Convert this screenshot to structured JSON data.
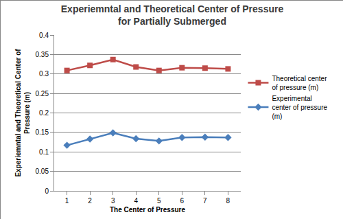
{
  "chart_data": {
    "type": "line",
    "title": "Experiemntal and Theoretical Center of Pressure for Partially Submerged",
    "x_label": "The Center of Pressure",
    "y_label": "Experiemntal and Theoretical Center of Pressure (m)",
    "categories": [
      "1",
      "2",
      "3",
      "4",
      "5",
      "6",
      "7",
      "8"
    ],
    "series": [
      {
        "name": "Theoretical center of pressure (m)",
        "color": "#be4b48",
        "marker": "square",
        "line_style": "solid",
        "values": [
          0.309,
          0.322,
          0.337,
          0.318,
          0.309,
          0.316,
          0.315,
          0.313
        ]
      },
      {
        "name": "Experimental center of pressure (m)",
        "color": "#4a7ebb",
        "marker": "diamond",
        "line_style": "solid",
        "values": [
          0.117,
          0.133,
          0.149,
          0.134,
          0.128,
          0.137,
          0.138,
          0.137
        ]
      }
    ],
    "ylim": [
      0,
      0.4
    ],
    "yticks": [
      0,
      0.05,
      0.1,
      0.15,
      0.2,
      0.25,
      0.3,
      0.35,
      0.4
    ],
    "grid": true,
    "legend": "right"
  }
}
